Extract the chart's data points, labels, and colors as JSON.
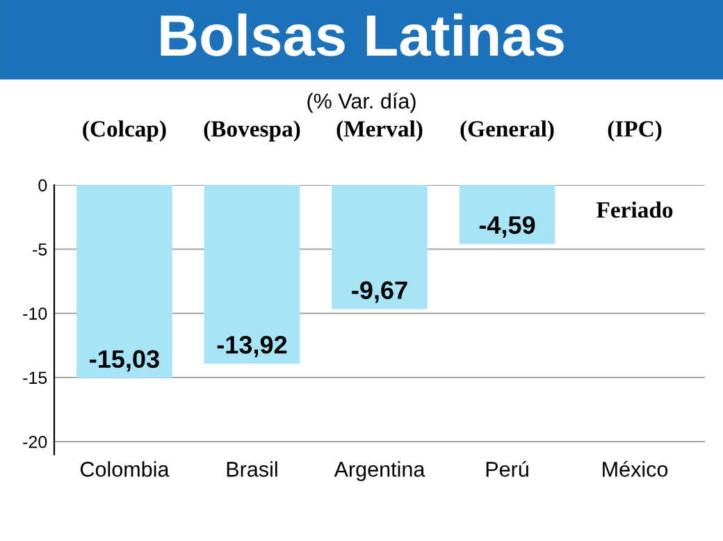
{
  "chart_data": {
    "type": "bar",
    "title": "Bolsas Latinas",
    "subtitle": "(% Var. día)",
    "categories": [
      "Colombia",
      "Brasil",
      "Argentina",
      "Perú",
      "México"
    ],
    "values": [
      -15.03,
      -13.92,
      -9.67,
      -4.59,
      null
    ],
    "value_labels": [
      "-15,03",
      "-13,92",
      "-9,67",
      "-4,59",
      null
    ],
    "color": "#a8e4f8",
    "ylim": [
      -21,
      0
    ],
    "yticks": [
      -20,
      -15,
      -10,
      -5,
      0
    ],
    "grid": "y",
    "annotations": [
      "(Colcap)",
      "(Bovespa)",
      "(Merval)",
      "(General)",
      "(IPC)",
      "Feriado"
    ]
  }
}
